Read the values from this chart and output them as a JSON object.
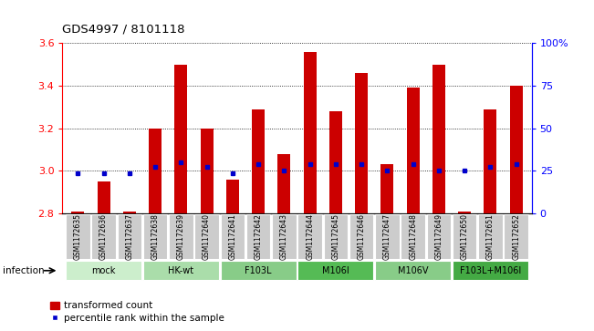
{
  "title": "GDS4997 / 8101118",
  "samples": [
    "GSM1172635",
    "GSM1172636",
    "GSM1172637",
    "GSM1172638",
    "GSM1172639",
    "GSM1172640",
    "GSM1172641",
    "GSM1172642",
    "GSM1172643",
    "GSM1172644",
    "GSM1172645",
    "GSM1172646",
    "GSM1172647",
    "GSM1172648",
    "GSM1172649",
    "GSM1172650",
    "GSM1172651",
    "GSM1172652"
  ],
  "bar_tops": [
    2.81,
    2.95,
    2.81,
    3.2,
    3.5,
    3.2,
    2.96,
    3.29,
    3.08,
    3.56,
    3.28,
    3.46,
    3.03,
    3.39,
    3.5,
    2.81,
    3.29,
    3.4
  ],
  "blue_markers": [
    2.99,
    2.99,
    2.99,
    3.02,
    3.04,
    3.02,
    2.99,
    3.03,
    3.0,
    3.03,
    3.03,
    3.03,
    3.0,
    3.03,
    3.0,
    3.0,
    3.02,
    3.03
  ],
  "bar_base": 2.8,
  "ylim": [
    2.8,
    3.6
  ],
  "yticks_left": [
    2.8,
    3.0,
    3.2,
    3.4,
    3.6
  ],
  "yticks_right": [
    0,
    25,
    50,
    75,
    100
  ],
  "bar_color": "#cc0000",
  "blue_color": "#0000cc",
  "groups": [
    {
      "label": "mock",
      "start": 0,
      "end": 3,
      "color": "#cceecc"
    },
    {
      "label": "HK-wt",
      "start": 3,
      "end": 6,
      "color": "#aaddaa"
    },
    {
      "label": "F103L",
      "start": 6,
      "end": 9,
      "color": "#88cc88"
    },
    {
      "label": "M106I",
      "start": 9,
      "end": 12,
      "color": "#55bb55"
    },
    {
      "label": "M106V",
      "start": 12,
      "end": 15,
      "color": "#88cc88"
    },
    {
      "label": "F103L+M106I",
      "start": 15,
      "end": 18,
      "color": "#44aa44"
    }
  ],
  "infection_label": "infection",
  "bar_width": 0.5,
  "label_box_color": "#cccccc",
  "spine_color": "#000000"
}
